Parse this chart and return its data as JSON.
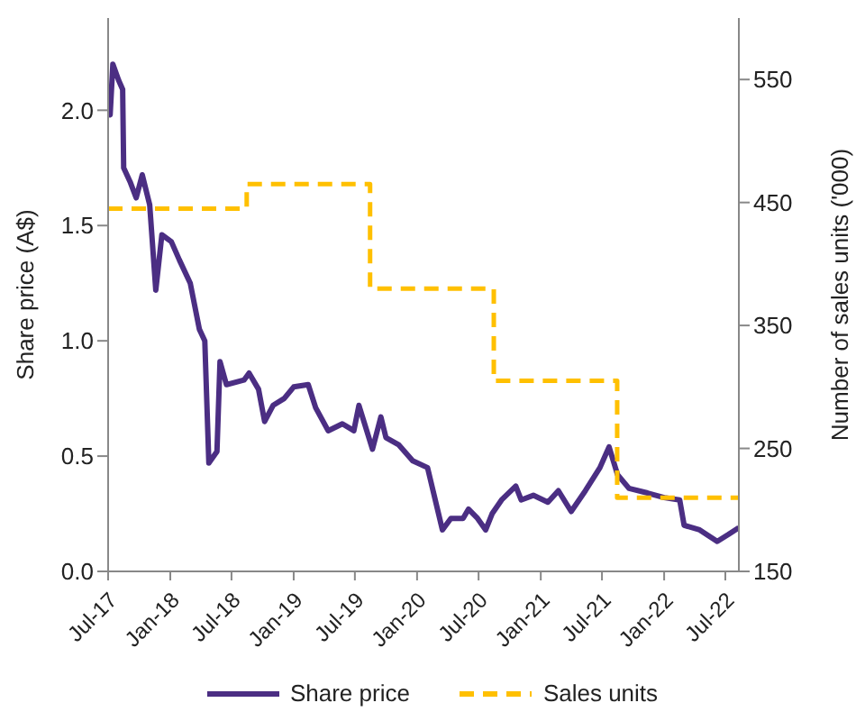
{
  "chart_data": {
    "type": "line",
    "xlim": [
      "2017-07-01",
      "2022-08-10"
    ],
    "xticks": [
      {
        "value": "2017-07-01",
        "label": "Jul-17"
      },
      {
        "value": "2018-01-01",
        "label": "Jan-18"
      },
      {
        "value": "2018-07-01",
        "label": "Jul-18"
      },
      {
        "value": "2019-01-01",
        "label": "Jan-19"
      },
      {
        "value": "2019-07-01",
        "label": "Jul-19"
      },
      {
        "value": "2020-01-01",
        "label": "Jan-20"
      },
      {
        "value": "2020-07-01",
        "label": "Jul-20"
      },
      {
        "value": "2021-01-01",
        "label": "Jan-21"
      },
      {
        "value": "2021-07-01",
        "label": "Jul-21"
      },
      {
        "value": "2022-01-01",
        "label": "Jan-22"
      },
      {
        "value": "2022-07-01",
        "label": "Jul-22"
      }
    ],
    "ylabel": "Share price (A$)",
    "y2label": "Number of sales units ('000)",
    "ylim": [
      0,
      2.4
    ],
    "yticks": [
      {
        "value": 0,
        "label": "0.0"
      },
      {
        "value": 0.5,
        "label": "0.5"
      },
      {
        "value": 1,
        "label": "1.0"
      },
      {
        "value": 1.5,
        "label": "1.5"
      },
      {
        "value": 2,
        "label": "2.0"
      }
    ],
    "y2lim": [
      150,
      600
    ],
    "y2ticks": [
      150,
      250,
      350,
      450,
      550
    ],
    "grid": false,
    "legend": "bottom",
    "marker": "none",
    "series": [
      {
        "name": "Share price",
        "type": "line",
        "color": "#4b2e83",
        "line_style": "solid",
        "axis": "y",
        "x": [
          "2017-07-01",
          "2017-07-07",
          "2017-07-15",
          "2017-08-01",
          "2017-08-13",
          "2017-08-16",
          "2017-09-04",
          "2017-09-22",
          "2017-10-10",
          "2017-11-01",
          "2017-11-19",
          "2017-12-07",
          "2018-01-04",
          "2018-01-28",
          "2018-03-01",
          "2018-03-28",
          "2018-04-13",
          "2018-04-25",
          "2018-05-19",
          "2018-05-28",
          "2018-06-16",
          "2018-08-07",
          "2018-08-22",
          "2018-09-19",
          "2018-10-07",
          "2018-11-01",
          "2018-12-04",
          "2019-01-01",
          "2019-02-13",
          "2019-03-07",
          "2019-04-13",
          "2019-05-25",
          "2019-06-28",
          "2019-07-13",
          "2019-08-22",
          "2019-09-16",
          "2019-10-01",
          "2019-11-07",
          "2019-12-19",
          "2020-02-01",
          "2020-03-16",
          "2020-04-10",
          "2020-05-16",
          "2020-06-01",
          "2020-06-28",
          "2020-07-22",
          "2020-08-10",
          "2020-09-07",
          "2020-10-19",
          "2020-11-04",
          "2020-12-10",
          "2021-01-22",
          "2021-02-22",
          "2021-04-01",
          "2021-05-13",
          "2021-06-25",
          "2021-07-22",
          "2021-08-16",
          "2021-09-19",
          "2021-11-13",
          "2022-01-01",
          "2022-02-16",
          "2022-03-01",
          "2022-04-16",
          "2022-06-07",
          "2022-07-10",
          "2022-08-10"
        ],
        "values": [
          2.01,
          1.98,
          2.2,
          2.13,
          2.09,
          1.75,
          1.69,
          1.62,
          1.72,
          1.59,
          1.22,
          1.46,
          1.43,
          1.35,
          1.25,
          1.05,
          1.0,
          0.47,
          0.52,
          0.91,
          0.81,
          0.83,
          0.86,
          0.79,
          0.65,
          0.72,
          0.75,
          0.8,
          0.81,
          0.71,
          0.61,
          0.64,
          0.61,
          0.72,
          0.53,
          0.67,
          0.58,
          0.55,
          0.48,
          0.45,
          0.18,
          0.23,
          0.23,
          0.27,
          0.23,
          0.18,
          0.25,
          0.31,
          0.37,
          0.31,
          0.33,
          0.3,
          0.35,
          0.26,
          0.35,
          0.45,
          0.54,
          0.42,
          0.36,
          0.34,
          0.32,
          0.31,
          0.2,
          0.18,
          0.13,
          0.16,
          0.19
        ]
      },
      {
        "name": "Sales units",
        "type": "step",
        "color": "#ffc000",
        "line_style": "dashed",
        "axis": "y2",
        "x": [
          "2017-07-01",
          "2018-08-15",
          "2019-08-15",
          "2020-08-15",
          "2021-08-15",
          "2022-08-10"
        ],
        "values": [
          445,
          465,
          380,
          305,
          210,
          210
        ]
      }
    ]
  }
}
